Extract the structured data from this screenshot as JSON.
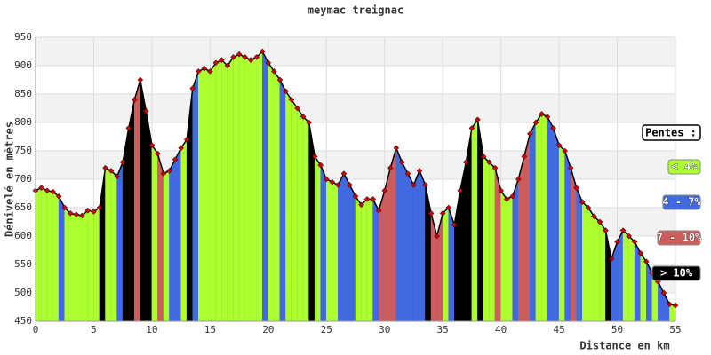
{
  "chart_data": {
    "type": "area",
    "title": "meymac treignac",
    "x_label": "Distance en km",
    "y_label": "Dénivelé en mètres",
    "legend_title": "Pentes :",
    "legend": [
      {
        "label": "< 4%",
        "color": "#adff2f"
      },
      {
        "label": "4 - 7%",
        "color": "#4169e1"
      },
      {
        "label": "7 - 10%",
        "color": "#cd5c5c"
      },
      {
        "label": "> 10%",
        "color": "#000000"
      }
    ],
    "line_color": "#000000",
    "marker_color": "#cc0000",
    "xlim": [
      0,
      55
    ],
    "xticks": [
      0,
      5,
      10,
      15,
      20,
      25,
      30,
      35,
      40,
      45,
      50,
      55
    ],
    "ylim": [
      450,
      950
    ],
    "yticks": [
      450,
      500,
      550,
      600,
      650,
      700,
      750,
      800,
      850,
      900,
      950
    ],
    "grid": true,
    "x": [
      0,
      0.5,
      1,
      1.5,
      2,
      2.5,
      3,
      3.5,
      4,
      4.5,
      5,
      5.5,
      6,
      6.5,
      7,
      7.5,
      8,
      8.5,
      9,
      9.5,
      10,
      10.5,
      11,
      11.5,
      12,
      12.5,
      13,
      13.5,
      14,
      14.5,
      15,
      15.5,
      16,
      16.5,
      17,
      17.5,
      18,
      18.5,
      19,
      19.5,
      20,
      20.5,
      21,
      21.5,
      22,
      22.5,
      23,
      23.5,
      24,
      24.5,
      25,
      25.5,
      26,
      26.5,
      27,
      27.5,
      28,
      28.5,
      29,
      29.5,
      30,
      30.5,
      31,
      31.5,
      32,
      32.5,
      33,
      33.5,
      34,
      34.5,
      35,
      35.5,
      36,
      36.5,
      37,
      37.5,
      38,
      38.5,
      39,
      39.5,
      40,
      40.5,
      41,
      41.5,
      42,
      42.5,
      43,
      43.5,
      44,
      44.5,
      45,
      45.5,
      46,
      46.5,
      47,
      47.5,
      48,
      48.5,
      49,
      49.5,
      50,
      50.5,
      51,
      51.5,
      52,
      52.5,
      53,
      53.5,
      54,
      54.5,
      55
    ],
    "values": [
      680,
      685,
      680,
      678,
      670,
      650,
      640,
      638,
      636,
      645,
      643,
      650,
      720,
      715,
      705,
      730,
      790,
      840,
      875,
      820,
      760,
      745,
      710,
      715,
      735,
      755,
      770,
      860,
      890,
      895,
      890,
      905,
      910,
      900,
      915,
      920,
      915,
      910,
      915,
      925,
      905,
      890,
      875,
      855,
      840,
      825,
      810,
      800,
      740,
      725,
      700,
      695,
      690,
      710,
      690,
      670,
      655,
      665,
      665,
      645,
      680,
      720,
      755,
      730,
      710,
      690,
      715,
      690,
      640,
      600,
      640,
      650,
      620,
      680,
      730,
      790,
      805,
      740,
      730,
      720,
      680,
      665,
      670,
      700,
      740,
      780,
      800,
      815,
      810,
      790,
      760,
      750,
      720,
      685,
      660,
      650,
      635,
      625,
      610,
      560,
      590,
      610,
      600,
      590,
      570,
      555,
      535,
      520,
      500,
      480,
      478
    ],
    "segment_classes": [
      0,
      0,
      0,
      0,
      1,
      0,
      0,
      0,
      0,
      0,
      0,
      3,
      0,
      0,
      1,
      3,
      3,
      2,
      3,
      3,
      0,
      2,
      0,
      1,
      1,
      0,
      3,
      1,
      0,
      0,
      0,
      0,
      0,
      0,
      0,
      0,
      0,
      0,
      0,
      1,
      0,
      0,
      1,
      0,
      0,
      0,
      0,
      3,
      0,
      1,
      0,
      0,
      1,
      1,
      1,
      0,
      0,
      0,
      1,
      2,
      2,
      2,
      1,
      1,
      1,
      1,
      1,
      3,
      2,
      2,
      0,
      1,
      3,
      3,
      3,
      0,
      3,
      0,
      0,
      2,
      0,
      0,
      1,
      2,
      2,
      1,
      0,
      0,
      1,
      1,
      0,
      1,
      2,
      1,
      0,
      0,
      0,
      0,
      3,
      1,
      1,
      0,
      0,
      1,
      0,
      1,
      0,
      1,
      1,
      0
    ]
  }
}
